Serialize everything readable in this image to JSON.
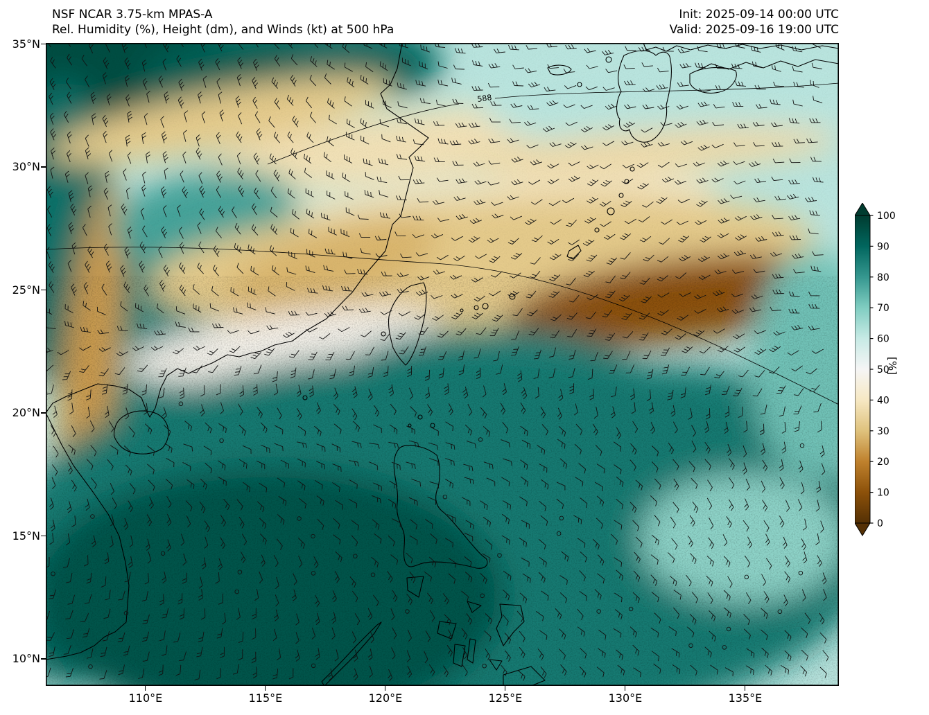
{
  "header": {
    "title_line1": "NSF NCAR 3.75-km MPAS-A",
    "title_line2": "Rel. Humidity (%), Height (dm), and Winds (kt) at 500 hPa",
    "init_label": "Init: 2025-09-14 00:00 UTC",
    "valid_label": "Valid: 2025-09-16 19:00 UTC"
  },
  "chart_data": {
    "type": "heatmap",
    "title": "Rel. Humidity (%), Height (dm), and Winds (kt) at 500 hPa",
    "model": "NSF NCAR 3.75-km MPAS-A",
    "init_time": "2025-09-14 00:00 UTC",
    "valid_time": "2025-09-16 19:00 UTC",
    "variable": "Relative Humidity",
    "units": "%",
    "level": "500 hPa",
    "overlays": [
      "Geopotential height contours (dm)",
      "Wind barbs (kt)"
    ],
    "x_axis": {
      "ticks": [
        {
          "label": "110°E",
          "lon": 110
        },
        {
          "label": "115°E",
          "lon": 115
        },
        {
          "label": "120°E",
          "lon": 120
        },
        {
          "label": "125°E",
          "lon": 125
        },
        {
          "label": "130°E",
          "lon": 130
        },
        {
          "label": "135°E",
          "lon": 135
        }
      ],
      "range_deg_e": [
        105.84,
        138.9
      ]
    },
    "y_axis": {
      "ticks": [
        {
          "label": "35°N",
          "lat": 35
        },
        {
          "label": "30°N",
          "lat": 30
        },
        {
          "label": "25°N",
          "lat": 25
        },
        {
          "label": "20°N",
          "lat": 20
        },
        {
          "label": "15°N",
          "lat": 15
        },
        {
          "label": "10°N",
          "lat": 10
        }
      ],
      "range_deg_n": [
        8.9,
        35.05
      ]
    },
    "colorbar": {
      "label": "[%]",
      "range": [
        0,
        100
      ],
      "ticks": [
        100,
        90,
        80,
        70,
        60,
        50,
        40,
        30,
        20,
        10,
        0
      ],
      "extend": "both",
      "stops": [
        {
          "v": 0,
          "c": "#543005"
        },
        {
          "v": 10,
          "c": "#8c510a"
        },
        {
          "v": 20,
          "c": "#bf812d"
        },
        {
          "v": 30,
          "c": "#dfc27d"
        },
        {
          "v": 40,
          "c": "#f6e8c3"
        },
        {
          "v": 50,
          "c": "#f5f5f5"
        },
        {
          "v": 60,
          "c": "#c7eae5"
        },
        {
          "v": 70,
          "c": "#80cdc1"
        },
        {
          "v": 80,
          "c": "#35978f"
        },
        {
          "v": 90,
          "c": "#01665e"
        },
        {
          "v": 100,
          "c": "#003c30"
        }
      ]
    },
    "contour_labels": [
      {
        "text": "588",
        "x": 0.545,
        "y": 0.092
      }
    ],
    "wind": {
      "units": "kt",
      "pattern_north": "westerlies north of ~22°N",
      "pattern_south": "easterlies south of ~20°N",
      "barb_spacing_px": 27
    },
    "rh_field_blobs": [
      {
        "x": 0.08,
        "y": 0.05,
        "rx": 0.2,
        "ry": 0.12,
        "rot": 0,
        "v": 96
      },
      {
        "x": 0.28,
        "y": 0.05,
        "rx": 0.16,
        "ry": 0.08,
        "rot": -6,
        "v": 92
      },
      {
        "x": 0.4,
        "y": 0.03,
        "rx": 0.1,
        "ry": 0.06,
        "rot": 0,
        "v": 90
      },
      {
        "x": 0.02,
        "y": 0.3,
        "rx": 0.07,
        "ry": 0.24,
        "rot": 0,
        "v": 88
      },
      {
        "x": 0.13,
        "y": 0.45,
        "rx": 0.09,
        "ry": 0.18,
        "rot": 0,
        "v": 84
      },
      {
        "x": 0.055,
        "y": 0.52,
        "rx": 0.035,
        "ry": 0.3,
        "rot": 6,
        "v": 24
      },
      {
        "x": 0.085,
        "y": 0.83,
        "rx": 0.045,
        "ry": 0.14,
        "rot": 8,
        "v": 30
      },
      {
        "x": 0.03,
        "y": 0.92,
        "rx": 0.07,
        "ry": 0.08,
        "rot": 0,
        "v": 88
      },
      {
        "x": 0.22,
        "y": 0.12,
        "rx": 0.22,
        "ry": 0.045,
        "rot": -11,
        "v": 32
      },
      {
        "x": 0.48,
        "y": 0.16,
        "rx": 0.28,
        "ry": 0.055,
        "rot": -7,
        "v": 38
      },
      {
        "x": 0.55,
        "y": 0.26,
        "rx": 0.3,
        "ry": 0.045,
        "rot": -5,
        "v": 42
      },
      {
        "x": 0.8,
        "y": 0.08,
        "rx": 0.26,
        "ry": 0.1,
        "rot": 0,
        "v": 62
      },
      {
        "x": 0.76,
        "y": 0.17,
        "rx": 0.24,
        "ry": 0.035,
        "rot": -4,
        "v": 36
      },
      {
        "x": 0.2,
        "y": 0.27,
        "rx": 0.12,
        "ry": 0.07,
        "rot": -10,
        "v": 78
      },
      {
        "x": 0.55,
        "y": 0.34,
        "rx": 0.42,
        "ry": 0.1,
        "rot": -4,
        "v": 32
      },
      {
        "x": 0.8,
        "y": 0.4,
        "rx": 0.22,
        "ry": 0.065,
        "rot": -7,
        "v": 10
      },
      {
        "x": 0.36,
        "y": 0.35,
        "rx": 0.14,
        "ry": 0.06,
        "rot": -18,
        "v": 28
      },
      {
        "x": 0.3,
        "y": 0.47,
        "rx": 0.2,
        "ry": 0.05,
        "rot": -8,
        "v": 48
      },
      {
        "x": 0.56,
        "y": 0.56,
        "rx": 0.22,
        "ry": 0.12,
        "rot": 0,
        "v": 84
      },
      {
        "x": 0.75,
        "y": 0.6,
        "rx": 0.26,
        "ry": 0.1,
        "rot": 0,
        "v": 85
      },
      {
        "x": 0.5,
        "y": 0.78,
        "rx": 0.55,
        "ry": 0.3,
        "rot": 0,
        "v": 86
      },
      {
        "x": 0.28,
        "y": 0.86,
        "rx": 0.3,
        "ry": 0.2,
        "rot": 0,
        "v": 94
      },
      {
        "x": 0.88,
        "y": 0.77,
        "rx": 0.13,
        "ry": 0.1,
        "rot": 0,
        "v": 68
      },
      {
        "x": 0.97,
        "y": 0.5,
        "rx": 0.08,
        "ry": 0.18,
        "rot": 0,
        "v": 72
      }
    ]
  }
}
